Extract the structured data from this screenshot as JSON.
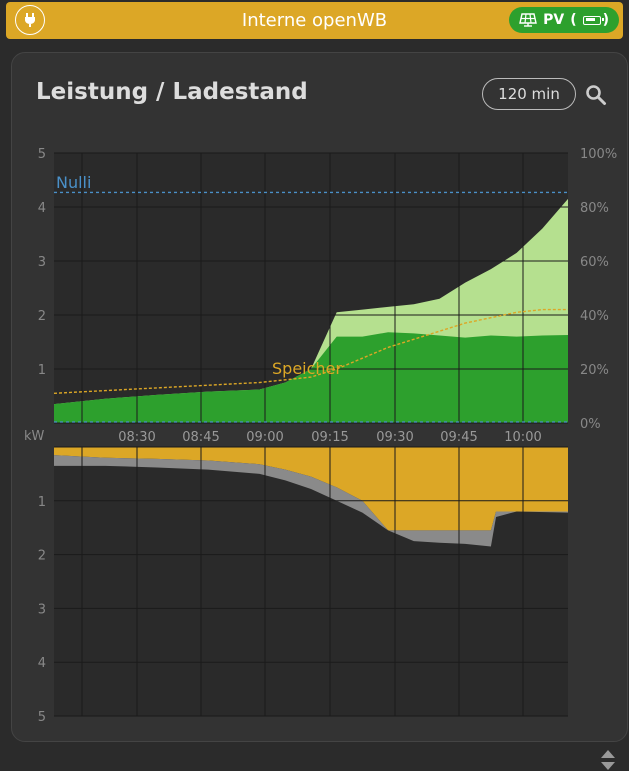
{
  "header": {
    "title": "Interne openWB",
    "pv_badge": "PV",
    "pv_open": "(",
    "pv_close": ")",
    "colors": {
      "bar": "#dca726",
      "badge": "#2da02d"
    }
  },
  "card": {
    "title": "Leistung / Ladestand",
    "range_button": "120 min"
  },
  "chart_data": [
    {
      "type": "area",
      "yunit_label": "kW",
      "ylim": [
        0,
        5
      ],
      "y_ticks": [
        "5",
        "4",
        "3",
        "2",
        "1"
      ],
      "y2_ticks": [
        "100%",
        "80%",
        "60%",
        "40%",
        "20%",
        "0%"
      ],
      "x_ticks": [
        "08:30",
        "08:45",
        "09:00",
        "09:15",
        "09:30",
        "09:45",
        "10:00"
      ],
      "annotations": [
        {
          "label": "Nulli",
          "value_kw": 4.27,
          "color": "#4a90c8"
        },
        {
          "label": "Speicher",
          "color": "#dca726"
        }
      ],
      "series": [
        {
          "color": "#2da02d",
          "points": [
            [
              0,
              0.35
            ],
            [
              10,
              0.45
            ],
            [
              20,
              0.52
            ],
            [
              30,
              0.58
            ],
            [
              40,
              0.62
            ],
            [
              45,
              0.75
            ],
            [
              50,
              1.0
            ],
            [
              55,
              1.6
            ],
            [
              60,
              1.6
            ],
            [
              65,
              1.68
            ],
            [
              70,
              1.66
            ],
            [
              75,
              1.62
            ],
            [
              80,
              1.58
            ],
            [
              85,
              1.62
            ],
            [
              90,
              1.6
            ],
            [
              95,
              1.62
            ],
            [
              100,
              1.63
            ]
          ]
        },
        {
          "color": "#b5e08f",
          "points": [
            [
              0,
              0.35
            ],
            [
              10,
              0.45
            ],
            [
              20,
              0.52
            ],
            [
              30,
              0.58
            ],
            [
              40,
              0.62
            ],
            [
              45,
              0.75
            ],
            [
              50,
              1.0
            ],
            [
              55,
              2.05
            ],
            [
              60,
              2.1
            ],
            [
              65,
              2.15
            ],
            [
              70,
              2.2
            ],
            [
              75,
              2.3
            ],
            [
              80,
              2.6
            ],
            [
              85,
              2.85
            ],
            [
              90,
              3.15
            ],
            [
              95,
              3.6
            ],
            [
              100,
              4.15
            ]
          ]
        },
        {
          "color": "#dca726",
          "points_soc_pct": [
            [
              0,
              11
            ],
            [
              10,
              12
            ],
            [
              20,
              13
            ],
            [
              30,
              14
            ],
            [
              40,
              15
            ],
            [
              45,
              16
            ],
            [
              50,
              17
            ],
            [
              55,
              20
            ],
            [
              60,
              24
            ],
            [
              65,
              28
            ],
            [
              70,
              31
            ],
            [
              75,
              34
            ],
            [
              80,
              37
            ],
            [
              85,
              39
            ],
            [
              90,
              41
            ],
            [
              95,
              42
            ],
            [
              100,
              42
            ]
          ]
        }
      ]
    },
    {
      "type": "area",
      "ylim": [
        0,
        5
      ],
      "y_ticks": [
        "1",
        "2",
        "3",
        "4",
        "5"
      ],
      "series": [
        {
          "color": "#dca726",
          "points": [
            [
              0,
              0
            ],
            [
              100,
              0
            ]
          ]
        },
        {
          "color": "#8a8a8a",
          "points": [
            [
              0,
              0.35
            ],
            [
              10,
              0.35
            ],
            [
              20,
              0.38
            ],
            [
              30,
              0.42
            ],
            [
              40,
              0.5
            ],
            [
              45,
              0.62
            ],
            [
              50,
              0.78
            ],
            [
              55,
              1.0
            ],
            [
              60,
              1.22
            ],
            [
              65,
              1.55
            ],
            [
              70,
              1.75
            ],
            [
              75,
              1.78
            ],
            [
              80,
              1.8
            ],
            [
              85,
              1.85
            ],
            [
              86,
              1.3
            ],
            [
              90,
              1.2
            ],
            [
              100,
              1.22
            ]
          ]
        }
      ]
    }
  ]
}
